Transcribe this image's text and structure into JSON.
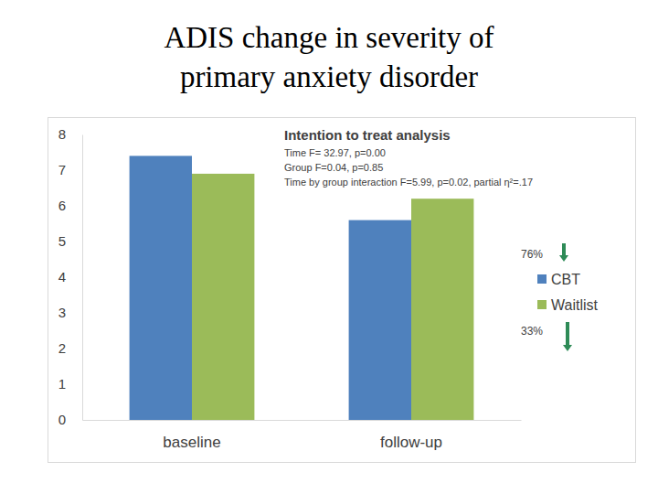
{
  "chart_data": {
    "type": "bar",
    "title": "ADIS change in severity of primary anxiety disorder",
    "categories": [
      "baseline",
      "follow-up"
    ],
    "series": [
      {
        "name": "CBT",
        "color": "#4f81bd",
        "values": [
          7.4,
          5.6
        ]
      },
      {
        "name": "Waitlist",
        "color": "#9bbb59",
        "values": [
          6.9,
          6.2
        ]
      }
    ],
    "ylim": [
      0,
      8
    ],
    "yticks": [
      0,
      1,
      2,
      3,
      4,
      5,
      6,
      7,
      8
    ],
    "grid": false,
    "legend": "right",
    "annotations": [
      "Intention to treat analysis",
      "Time F= 32.97, p=0.00",
      "Group F=0.04, p=0.85",
      "Time by group interaction F=5.99, p=0.02, partial η²=.17",
      "76%",
      "33%"
    ]
  }
}
